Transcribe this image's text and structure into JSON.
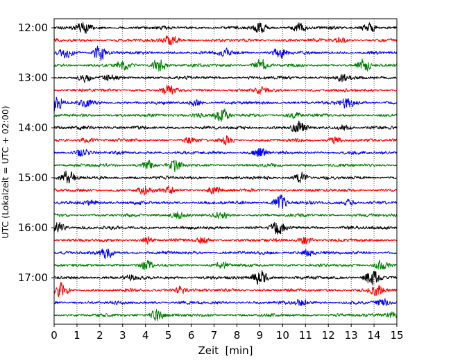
{
  "chart_data": {
    "type": "line",
    "subtype": "helicorder",
    "xlabel": "Zeit  [min]",
    "ylabel": "UTC (Lokalzeit = UTC + 02:00)",
    "xlim": [
      0,
      15
    ],
    "x_ticks": [
      0,
      1,
      2,
      3,
      4,
      5,
      6,
      7,
      8,
      9,
      10,
      11,
      12,
      13,
      14,
      15
    ],
    "x_tick_labels": [
      "0",
      "1",
      "2",
      "3",
      "4",
      "5",
      "6",
      "7",
      "8",
      "9",
      "10",
      "11",
      "12",
      "13",
      "14",
      "15"
    ],
    "y_tick_labels": [
      "12:00",
      "13:00",
      "14:00",
      "15:00",
      "16:00",
      "17:00"
    ],
    "vertical_grid": true,
    "grid_style": "dotted",
    "trace_minutes": 15,
    "colors": [
      "#000000",
      "#ff0000",
      "#0000ff",
      "#008000"
    ],
    "series": [
      {
        "start": "12:00",
        "bursts": [
          [
            1.3,
            1.0
          ],
          [
            9.0,
            0.9
          ],
          [
            10.7,
            0.8
          ],
          [
            13.8,
            0.8
          ]
        ]
      },
      {
        "start": "12:15",
        "bursts": [
          [
            5.1,
            1.1
          ],
          [
            12.5,
            0.5
          ]
        ]
      },
      {
        "start": "12:30",
        "bursts": [
          [
            0.5,
            0.7
          ],
          [
            2.0,
            1.3
          ],
          [
            7.5,
            0.6
          ],
          [
            9.9,
            1.0
          ]
        ]
      },
      {
        "start": "12:45",
        "bursts": [
          [
            3.0,
            0.7
          ],
          [
            4.6,
            1.2
          ],
          [
            9.0,
            1.2
          ],
          [
            13.6,
            1.0
          ]
        ]
      },
      {
        "start": "13:00",
        "bursts": [
          [
            1.4,
            0.6
          ],
          [
            2.4,
            0.5
          ],
          [
            12.6,
            0.6
          ]
        ]
      },
      {
        "start": "13:15",
        "bursts": [
          [
            5.0,
            0.9
          ],
          [
            9.0,
            0.5
          ]
        ]
      },
      {
        "start": "13:30",
        "bursts": [
          [
            0.1,
            1.3
          ],
          [
            1.4,
            0.6
          ],
          [
            6.2,
            0.5
          ],
          [
            12.8,
            1.0
          ]
        ]
      },
      {
        "start": "13:45",
        "bursts": [
          [
            6.3,
            0.4
          ],
          [
            7.3,
            1.3
          ],
          [
            10.5,
            0.5
          ]
        ]
      },
      {
        "start": "14:00",
        "bursts": [
          [
            1.4,
            0.4
          ],
          [
            10.7,
            1.1
          ],
          [
            12.7,
            0.5
          ]
        ]
      },
      {
        "start": "14:15",
        "bursts": [
          [
            1.4,
            0.5
          ],
          [
            5.9,
            0.5
          ],
          [
            7.6,
            0.7
          ],
          [
            12.3,
            0.6
          ]
        ]
      },
      {
        "start": "14:30",
        "bursts": [
          [
            1.2,
            0.7
          ],
          [
            9.0,
            0.9
          ]
        ]
      },
      {
        "start": "14:45",
        "bursts": [
          [
            4.1,
            0.9
          ],
          [
            5.3,
            0.9
          ]
        ]
      },
      {
        "start": "15:00",
        "bursts": [
          [
            0.6,
            1.2
          ],
          [
            10.8,
            1.0
          ]
        ]
      },
      {
        "start": "15:15",
        "bursts": [
          [
            4.0,
            0.8
          ],
          [
            5.0,
            0.6
          ],
          [
            7.0,
            0.6
          ]
        ]
      },
      {
        "start": "15:30",
        "bursts": [
          [
            1.6,
            0.5
          ],
          [
            9.9,
            1.2
          ],
          [
            12.9,
            0.5
          ]
        ]
      },
      {
        "start": "15:45",
        "bursts": [
          [
            5.4,
            0.7
          ],
          [
            7.3,
            0.5
          ]
        ]
      },
      {
        "start": "16:00",
        "bursts": [
          [
            0.2,
            0.9
          ],
          [
            9.8,
            1.3
          ]
        ]
      },
      {
        "start": "16:15",
        "bursts": [
          [
            4.1,
            0.6
          ],
          [
            6.5,
            0.5
          ],
          [
            11.0,
            0.7
          ]
        ]
      },
      {
        "start": "16:30",
        "bursts": [
          [
            2.3,
            1.0
          ],
          [
            11.1,
            0.6
          ]
        ]
      },
      {
        "start": "16:45",
        "bursts": [
          [
            4.0,
            0.9
          ],
          [
            7.4,
            0.6
          ],
          [
            14.3,
            0.9
          ]
        ]
      },
      {
        "start": "17:00",
        "bursts": [
          [
            3.3,
            0.5
          ],
          [
            9.0,
            1.6
          ],
          [
            13.9,
            1.7
          ]
        ]
      },
      {
        "start": "17:15",
        "bursts": [
          [
            0.3,
            1.2
          ],
          [
            5.5,
            0.7
          ],
          [
            14.1,
            0.9
          ]
        ]
      },
      {
        "start": "17:30",
        "bursts": [
          [
            10.8,
            0.5
          ],
          [
            14.4,
            0.5
          ]
        ]
      },
      {
        "start": "17:45",
        "bursts": [
          [
            4.5,
            1.1
          ],
          [
            14.8,
            0.6
          ]
        ]
      }
    ]
  }
}
